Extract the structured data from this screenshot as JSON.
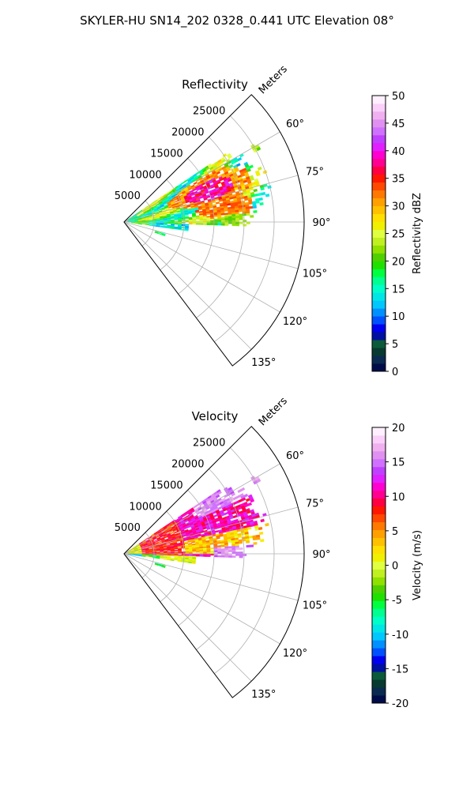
{
  "figure": {
    "title": "SKYLER-HU  SN14_202  0328_0.441 UTC Elevation 08°"
  },
  "chart_data": [
    {
      "type": "heatmap",
      "subtype": "polar-sector",
      "title": "Reflectivity",
      "range_label": "Meters",
      "range_ticks": [
        "5000",
        "10000",
        "15000",
        "20000",
        "25000"
      ],
      "range_values": [
        5000,
        10000,
        15000,
        20000,
        25000
      ],
      "range_max": 30000,
      "azimuth_ticks": [
        "60°",
        "75°",
        "90°",
        "105°",
        "120°",
        "135°"
      ],
      "azimuth_values": [
        60,
        75,
        90,
        105,
        120,
        135
      ],
      "azimuth_range": [
        45,
        143
      ],
      "grid": true,
      "colorbar": {
        "label": "Reflectivity dBZ",
        "min": 0,
        "max": 50,
        "ticks": [
          "0",
          "5",
          "10",
          "15",
          "20",
          "25",
          "30",
          "35",
          "40",
          "45",
          "50"
        ],
        "tick_values": [
          0,
          5,
          10,
          15,
          20,
          25,
          30,
          35,
          40,
          45,
          50
        ],
        "colors": [
          "#000c4a",
          "#0a2a50",
          "#083a30",
          "#0b5a3a",
          "#0010a0",
          "#0000f0",
          "#0050ff",
          "#0090ff",
          "#00c8ff",
          "#00e6e6",
          "#00ffc8",
          "#00ff90",
          "#00ff40",
          "#20e000",
          "#50d000",
          "#90e000",
          "#c0f020",
          "#e0ff40",
          "#f0f000",
          "#ffe000",
          "#ffc000",
          "#ffa000",
          "#ff7800",
          "#ff4800",
          "#ff1800",
          "#ff0040",
          "#ff0090",
          "#ff00d0",
          "#e020ff",
          "#c040ff",
          "#d070ff",
          "#e090f0",
          "#f0b0f0",
          "#fad0fa",
          "#fff0ff"
        ]
      }
    },
    {
      "type": "heatmap",
      "subtype": "polar-sector",
      "title": "Velocity",
      "range_label": "Meters",
      "range_ticks": [
        "5000",
        "10000",
        "15000",
        "20000",
        "25000"
      ],
      "range_values": [
        5000,
        10000,
        15000,
        20000,
        25000
      ],
      "range_max": 30000,
      "azimuth_ticks": [
        "60°",
        "75°",
        "90°",
        "105°",
        "120°",
        "135°"
      ],
      "azimuth_values": [
        60,
        75,
        90,
        105,
        120,
        135
      ],
      "azimuth_range": [
        45,
        143
      ],
      "grid": true,
      "colorbar": {
        "label": "Velocity (m/s)",
        "min": -20,
        "max": 20,
        "ticks": [
          "-20",
          "-15",
          "-10",
          "-5",
          "0",
          "5",
          "10",
          "15",
          "20"
        ],
        "tick_values": [
          -20,
          -15,
          -10,
          -5,
          0,
          5,
          10,
          15,
          20
        ],
        "colors": [
          "#000c4a",
          "#0a2a50",
          "#083a30",
          "#0b5a3a",
          "#0010a0",
          "#0000f0",
          "#0050ff",
          "#0090ff",
          "#00c8ff",
          "#00e6e6",
          "#00ffc8",
          "#00ff90",
          "#00ff40",
          "#20e000",
          "#50d000",
          "#90e000",
          "#c0f020",
          "#e0ff40",
          "#f0f000",
          "#ffe000",
          "#ffc000",
          "#ffa000",
          "#ff7800",
          "#ff4800",
          "#ff1800",
          "#ff0040",
          "#ff0090",
          "#ff00d0",
          "#e020ff",
          "#c040ff",
          "#d070ff",
          "#e090f0",
          "#f0b0f0",
          "#fad0fa",
          "#fff0ff"
        ]
      }
    }
  ]
}
